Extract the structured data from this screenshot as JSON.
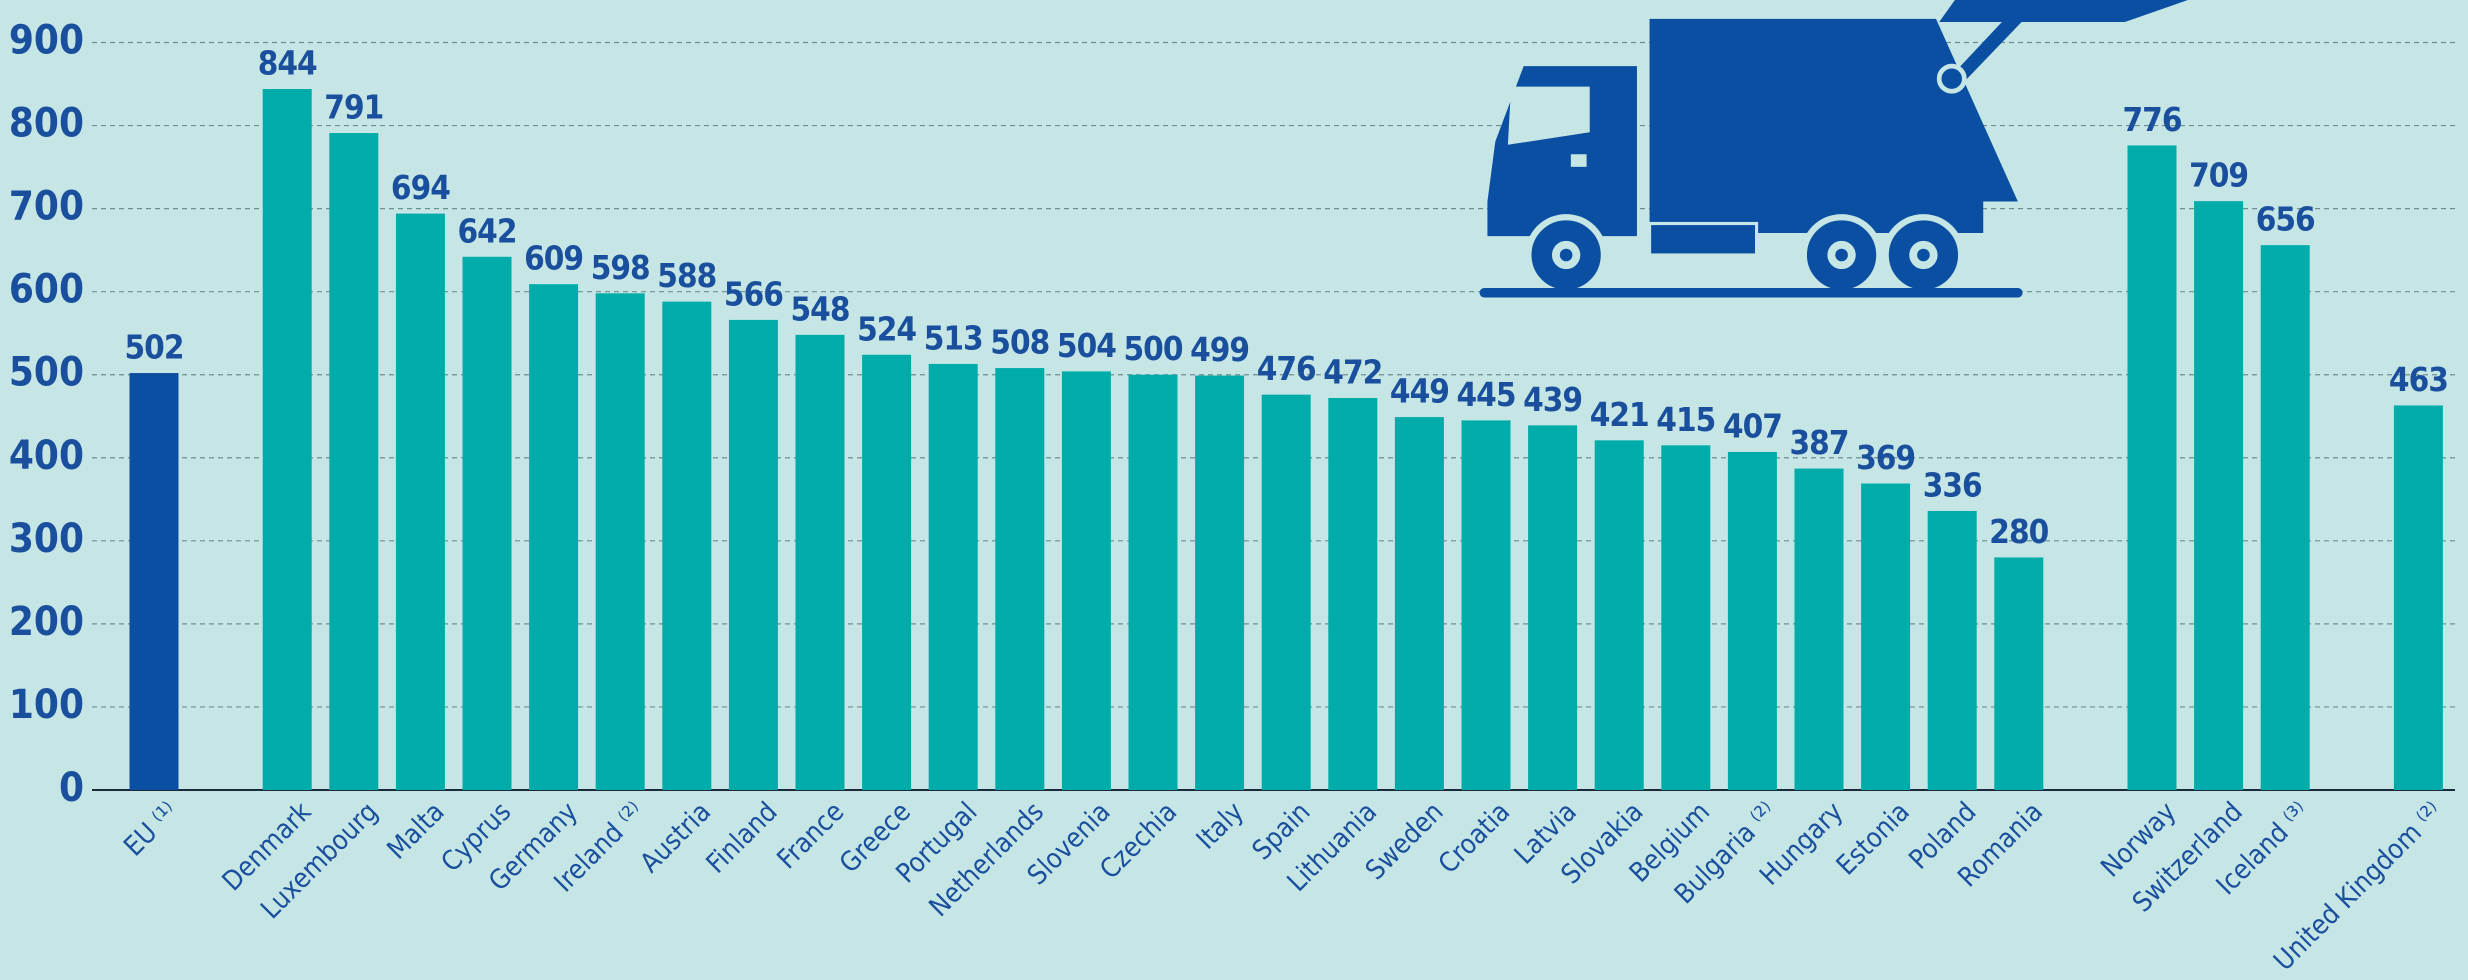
{
  "chart_data": {
    "type": "bar",
    "categories": [
      "EU ⁽¹⁾",
      null,
      "Denmark",
      "Luxembourg",
      "Malta",
      "Cyprus",
      "Germany",
      "Ireland ⁽²⁾",
      "Austria",
      "Finland",
      "France",
      "Greece",
      "Portugal",
      "Netherlands",
      "Slovenia",
      "Czechia",
      "Italy",
      "Spain",
      "Lithuania",
      "Sweden",
      "Croatia",
      "Latvia",
      "Slovakia",
      "Belgium",
      "Bulgaria ⁽²⁾",
      "Hungary",
      "Estonia",
      "Poland",
      "Romania",
      null,
      "Norway",
      "Switzerland",
      "Iceland ⁽³⁾",
      null,
      "United Kingdom ⁽²⁾"
    ],
    "values": [
      502,
      null,
      844,
      791,
      694,
      642,
      609,
      598,
      588,
      566,
      548,
      524,
      513,
      508,
      504,
      500,
      499,
      476,
      472,
      449,
      445,
      439,
      421,
      415,
      407,
      387,
      369,
      336,
      280,
      null,
      776,
      709,
      656,
      null,
      463
    ],
    "colors": [
      "#0b4fa3",
      null,
      "#00aca9",
      "#00aca9",
      "#00aca9",
      "#00aca9",
      "#00aca9",
      "#00aca9",
      "#00aca9",
      "#00aca9",
      "#00aca9",
      "#00aca9",
      "#00aca9",
      "#00aca9",
      "#00aca9",
      "#00aca9",
      "#00aca9",
      "#00aca9",
      "#00aca9",
      "#00aca9",
      "#00aca9",
      "#00aca9",
      "#00aca9",
      "#00aca9",
      "#00aca9",
      "#00aca9",
      "#00aca9",
      "#00aca9",
      "#00aca9",
      null,
      "#00aca9",
      "#00aca9",
      "#00aca9",
      null,
      "#00aca9"
    ],
    "ylim": [
      0,
      900
    ],
    "yticks": [
      0,
      100,
      200,
      300,
      400,
      500,
      600,
      700,
      800,
      900
    ],
    "grid": true
  }
}
